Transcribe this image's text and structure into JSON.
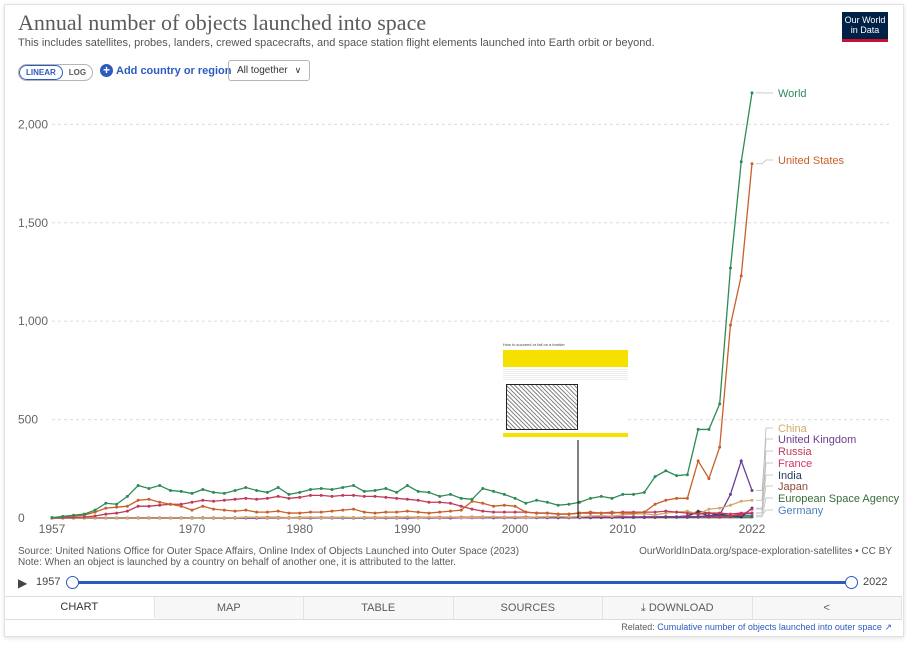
{
  "header": {
    "title": "Annual number of objects launched into space",
    "subtitle": "This includes satellites, probes, landers, crewed spacecrafts, and space station flight elements launched into Earth orbit or beyond.",
    "logo": "Our World in Data"
  },
  "controls": {
    "linear_label": "LINEAR",
    "log_label": "LOG",
    "add_label": "Add country or region",
    "together_label": "All together"
  },
  "chart_data": {
    "type": "line",
    "title": "Annual number of objects launched into space",
    "xlabel": "",
    "ylabel": "",
    "xlim": [
      1957,
      2022
    ],
    "ylim": [
      0,
      2200
    ],
    "x_ticks": [
      "1957",
      "1970",
      "1980",
      "1990",
      "2000",
      "2010",
      "2022"
    ],
    "y_ticks": [
      "0",
      "500",
      "1,000",
      "1,500",
      "2,000"
    ],
    "grid": "horizontal dashed",
    "legend_placement": "right-inline",
    "x": [
      1957,
      1958,
      1959,
      1960,
      1961,
      1962,
      1963,
      1964,
      1965,
      1966,
      1967,
      1968,
      1969,
      1970,
      1971,
      1972,
      1973,
      1974,
      1975,
      1976,
      1977,
      1978,
      1979,
      1980,
      1981,
      1982,
      1983,
      1984,
      1985,
      1986,
      1987,
      1988,
      1989,
      1990,
      1991,
      1992,
      1993,
      1994,
      1995,
      1996,
      1997,
      1998,
      1999,
      2000,
      2001,
      2002,
      2003,
      2004,
      2005,
      2006,
      2007,
      2008,
      2009,
      2010,
      2011,
      2012,
      2013,
      2014,
      2015,
      2016,
      2017,
      2018,
      2019,
      2020,
      2021,
      2022
    ],
    "series": [
      {
        "name": "World",
        "color": "#2e8b57",
        "values": [
          2,
          8,
          14,
          20,
          40,
          75,
          70,
          110,
          165,
          150,
          165,
          140,
          135,
          125,
          145,
          130,
          125,
          140,
          155,
          140,
          130,
          155,
          120,
          130,
          145,
          150,
          145,
          155,
          165,
          135,
          140,
          150,
          130,
          165,
          135,
          130,
          110,
          120,
          100,
          95,
          150,
          135,
          120,
          100,
          75,
          90,
          80,
          65,
          70,
          80,
          100,
          110,
          100,
          120,
          120,
          130,
          210,
          240,
          215,
          220,
          450,
          450,
          580,
          1270,
          1810,
          2160
        ]
      },
      {
        "name": "United States",
        "color": "#c8602a",
        "values": [
          0,
          5,
          10,
          15,
          30,
          50,
          55,
          60,
          90,
          95,
          80,
          70,
          60,
          40,
          60,
          45,
          40,
          35,
          40,
          30,
          30,
          35,
          25,
          25,
          30,
          30,
          35,
          40,
          45,
          30,
          25,
          30,
          30,
          35,
          30,
          25,
          30,
          35,
          40,
          85,
          75,
          60,
          65,
          60,
          30,
          25,
          25,
          20,
          20,
          25,
          30,
          25,
          30,
          25,
          25,
          30,
          70,
          90,
          100,
          100,
          290,
          200,
          360,
          980,
          1230,
          1800
        ]
      },
      {
        "name": "Russia",
        "color": "#c03a5a",
        "values": [
          1,
          2,
          3,
          5,
          10,
          20,
          25,
          35,
          60,
          60,
          65,
          70,
          70,
          80,
          90,
          85,
          90,
          95,
          100,
          95,
          100,
          110,
          100,
          105,
          115,
          115,
          110,
          115,
          115,
          110,
          110,
          105,
          100,
          95,
          90,
          80,
          80,
          75,
          60,
          45,
          35,
          30,
          30,
          30,
          30,
          25,
          25,
          20,
          20,
          25,
          25,
          25,
          25,
          30,
          30,
          30,
          30,
          35,
          30,
          25,
          20,
          25,
          25,
          20,
          25,
          25
        ]
      },
      {
        "name": "China",
        "color": "#d4a86a",
        "values": [
          0,
          0,
          0,
          0,
          0,
          0,
          0,
          0,
          0,
          0,
          0,
          0,
          0,
          1,
          1,
          1,
          1,
          1,
          3,
          3,
          1,
          1,
          1,
          1,
          3,
          1,
          2,
          3,
          2,
          2,
          2,
          4,
          2,
          5,
          2,
          4,
          2,
          5,
          2,
          3,
          4,
          6,
          4,
          5,
          2,
          5,
          6,
          8,
          5,
          6,
          10,
          12,
          9,
          16,
          20,
          22,
          15,
          25,
          30,
          35,
          20,
          45,
          50,
          65,
          85,
          90
        ]
      },
      {
        "name": "United Kingdom",
        "color": "#6d3e91",
        "values": [
          0,
          0,
          0,
          0,
          0,
          0,
          0,
          0,
          0,
          0,
          0,
          0,
          0,
          1,
          1,
          0,
          0,
          1,
          0,
          0,
          0,
          0,
          0,
          0,
          0,
          0,
          0,
          0,
          0,
          0,
          0,
          0,
          0,
          1,
          1,
          0,
          0,
          0,
          1,
          1,
          1,
          1,
          1,
          1,
          1,
          2,
          1,
          1,
          1,
          1,
          1,
          2,
          2,
          2,
          3,
          4,
          4,
          5,
          5,
          4,
          8,
          10,
          15,
          120,
          290,
          140
        ]
      },
      {
        "name": "France",
        "color": "#d6336c",
        "values": [
          0,
          0,
          0,
          0,
          0,
          0,
          0,
          0,
          1,
          1,
          1,
          0,
          0,
          1,
          1,
          1,
          0,
          0,
          1,
          0,
          0,
          0,
          1,
          1,
          1,
          1,
          1,
          1,
          1,
          2,
          2,
          2,
          3,
          4,
          3,
          3,
          4,
          4,
          4,
          5,
          5,
          5,
          5,
          5,
          5,
          4,
          5,
          4,
          4,
          5,
          5,
          5,
          5,
          5,
          5,
          6,
          5,
          5,
          6,
          8,
          6,
          6,
          8,
          10,
          15,
          45
        ]
      },
      {
        "name": "India",
        "color": "#1d3d63",
        "values": [
          0,
          0,
          0,
          0,
          0,
          0,
          0,
          0,
          0,
          0,
          0,
          0,
          0,
          0,
          0,
          0,
          0,
          0,
          1,
          0,
          0,
          0,
          1,
          1,
          1,
          1,
          1,
          1,
          0,
          0,
          1,
          1,
          0,
          0,
          1,
          1,
          1,
          1,
          1,
          2,
          2,
          1,
          2,
          2,
          2,
          2,
          2,
          3,
          3,
          2,
          3,
          3,
          3,
          4,
          5,
          3,
          4,
          5,
          6,
          10,
          30,
          10,
          20,
          10,
          5,
          50
        ]
      },
      {
        "name": "Japan",
        "color": "#8c4b32",
        "values": [
          0,
          0,
          0,
          0,
          0,
          0,
          0,
          0,
          0,
          0,
          0,
          0,
          0,
          1,
          2,
          1,
          1,
          2,
          3,
          3,
          4,
          3,
          2,
          3,
          3,
          3,
          3,
          3,
          2,
          3,
          3,
          3,
          4,
          5,
          3,
          3,
          3,
          3,
          4,
          4,
          5,
          4,
          3,
          3,
          2,
          3,
          4,
          3,
          4,
          7,
          5,
          5,
          5,
          6,
          5,
          5,
          6,
          7,
          6,
          10,
          35,
          25,
          15,
          10,
          20,
          25
        ]
      },
      {
        "name": "European Space Agency",
        "color": "#3a6b3a",
        "values": [
          0,
          0,
          0,
          0,
          0,
          0,
          0,
          0,
          0,
          0,
          0,
          0,
          0,
          0,
          0,
          0,
          0,
          0,
          1,
          0,
          0,
          1,
          1,
          0,
          1,
          1,
          1,
          1,
          1,
          1,
          1,
          1,
          2,
          2,
          2,
          2,
          2,
          2,
          2,
          2,
          3,
          3,
          2,
          2,
          2,
          2,
          2,
          2,
          2,
          2,
          2,
          3,
          3,
          3,
          3,
          4,
          3,
          3,
          3,
          3,
          4,
          4,
          4,
          5,
          5,
          6
        ]
      },
      {
        "name": "Germany",
        "color": "#4a7fba",
        "values": [
          0,
          0,
          0,
          0,
          0,
          0,
          0,
          0,
          0,
          0,
          0,
          0,
          1,
          1,
          1,
          0,
          0,
          1,
          1,
          1,
          0,
          0,
          0,
          0,
          0,
          0,
          0,
          0,
          0,
          0,
          1,
          1,
          1,
          2,
          2,
          1,
          1,
          1,
          2,
          2,
          3,
          2,
          2,
          3,
          3,
          2,
          2,
          2,
          2,
          3,
          3,
          3,
          3,
          3,
          3,
          3,
          4,
          4,
          5,
          5,
          6,
          7,
          8,
          10,
          12,
          14
        ]
      }
    ]
  },
  "footer": {
    "source": "Source: United Nations Office for Outer Space Affairs, Online Index of Objects Launched into Outer Space (2023)",
    "note": "Note: When an object is launched by a country on behalf of another one, it is attributed to the latter.",
    "url": "OurWorldInData.org/space-exploration-satellites • CC BY"
  },
  "timeline": {
    "start": "1957",
    "end": "2022"
  },
  "tabs": [
    {
      "label": "CHART",
      "active": true
    },
    {
      "label": "MAP",
      "active": false
    },
    {
      "label": "TABLE",
      "active": false
    },
    {
      "label": "SOURCES",
      "active": false
    },
    {
      "label": "DOWNLOAD",
      "active": false
    },
    {
      "label": "",
      "active": false
    }
  ],
  "related": {
    "prefix": "Related: ",
    "link": "Cumulative number of objects launched into outer space"
  },
  "overlay": {
    "title": "How to succeed or fail on a frontier"
  }
}
